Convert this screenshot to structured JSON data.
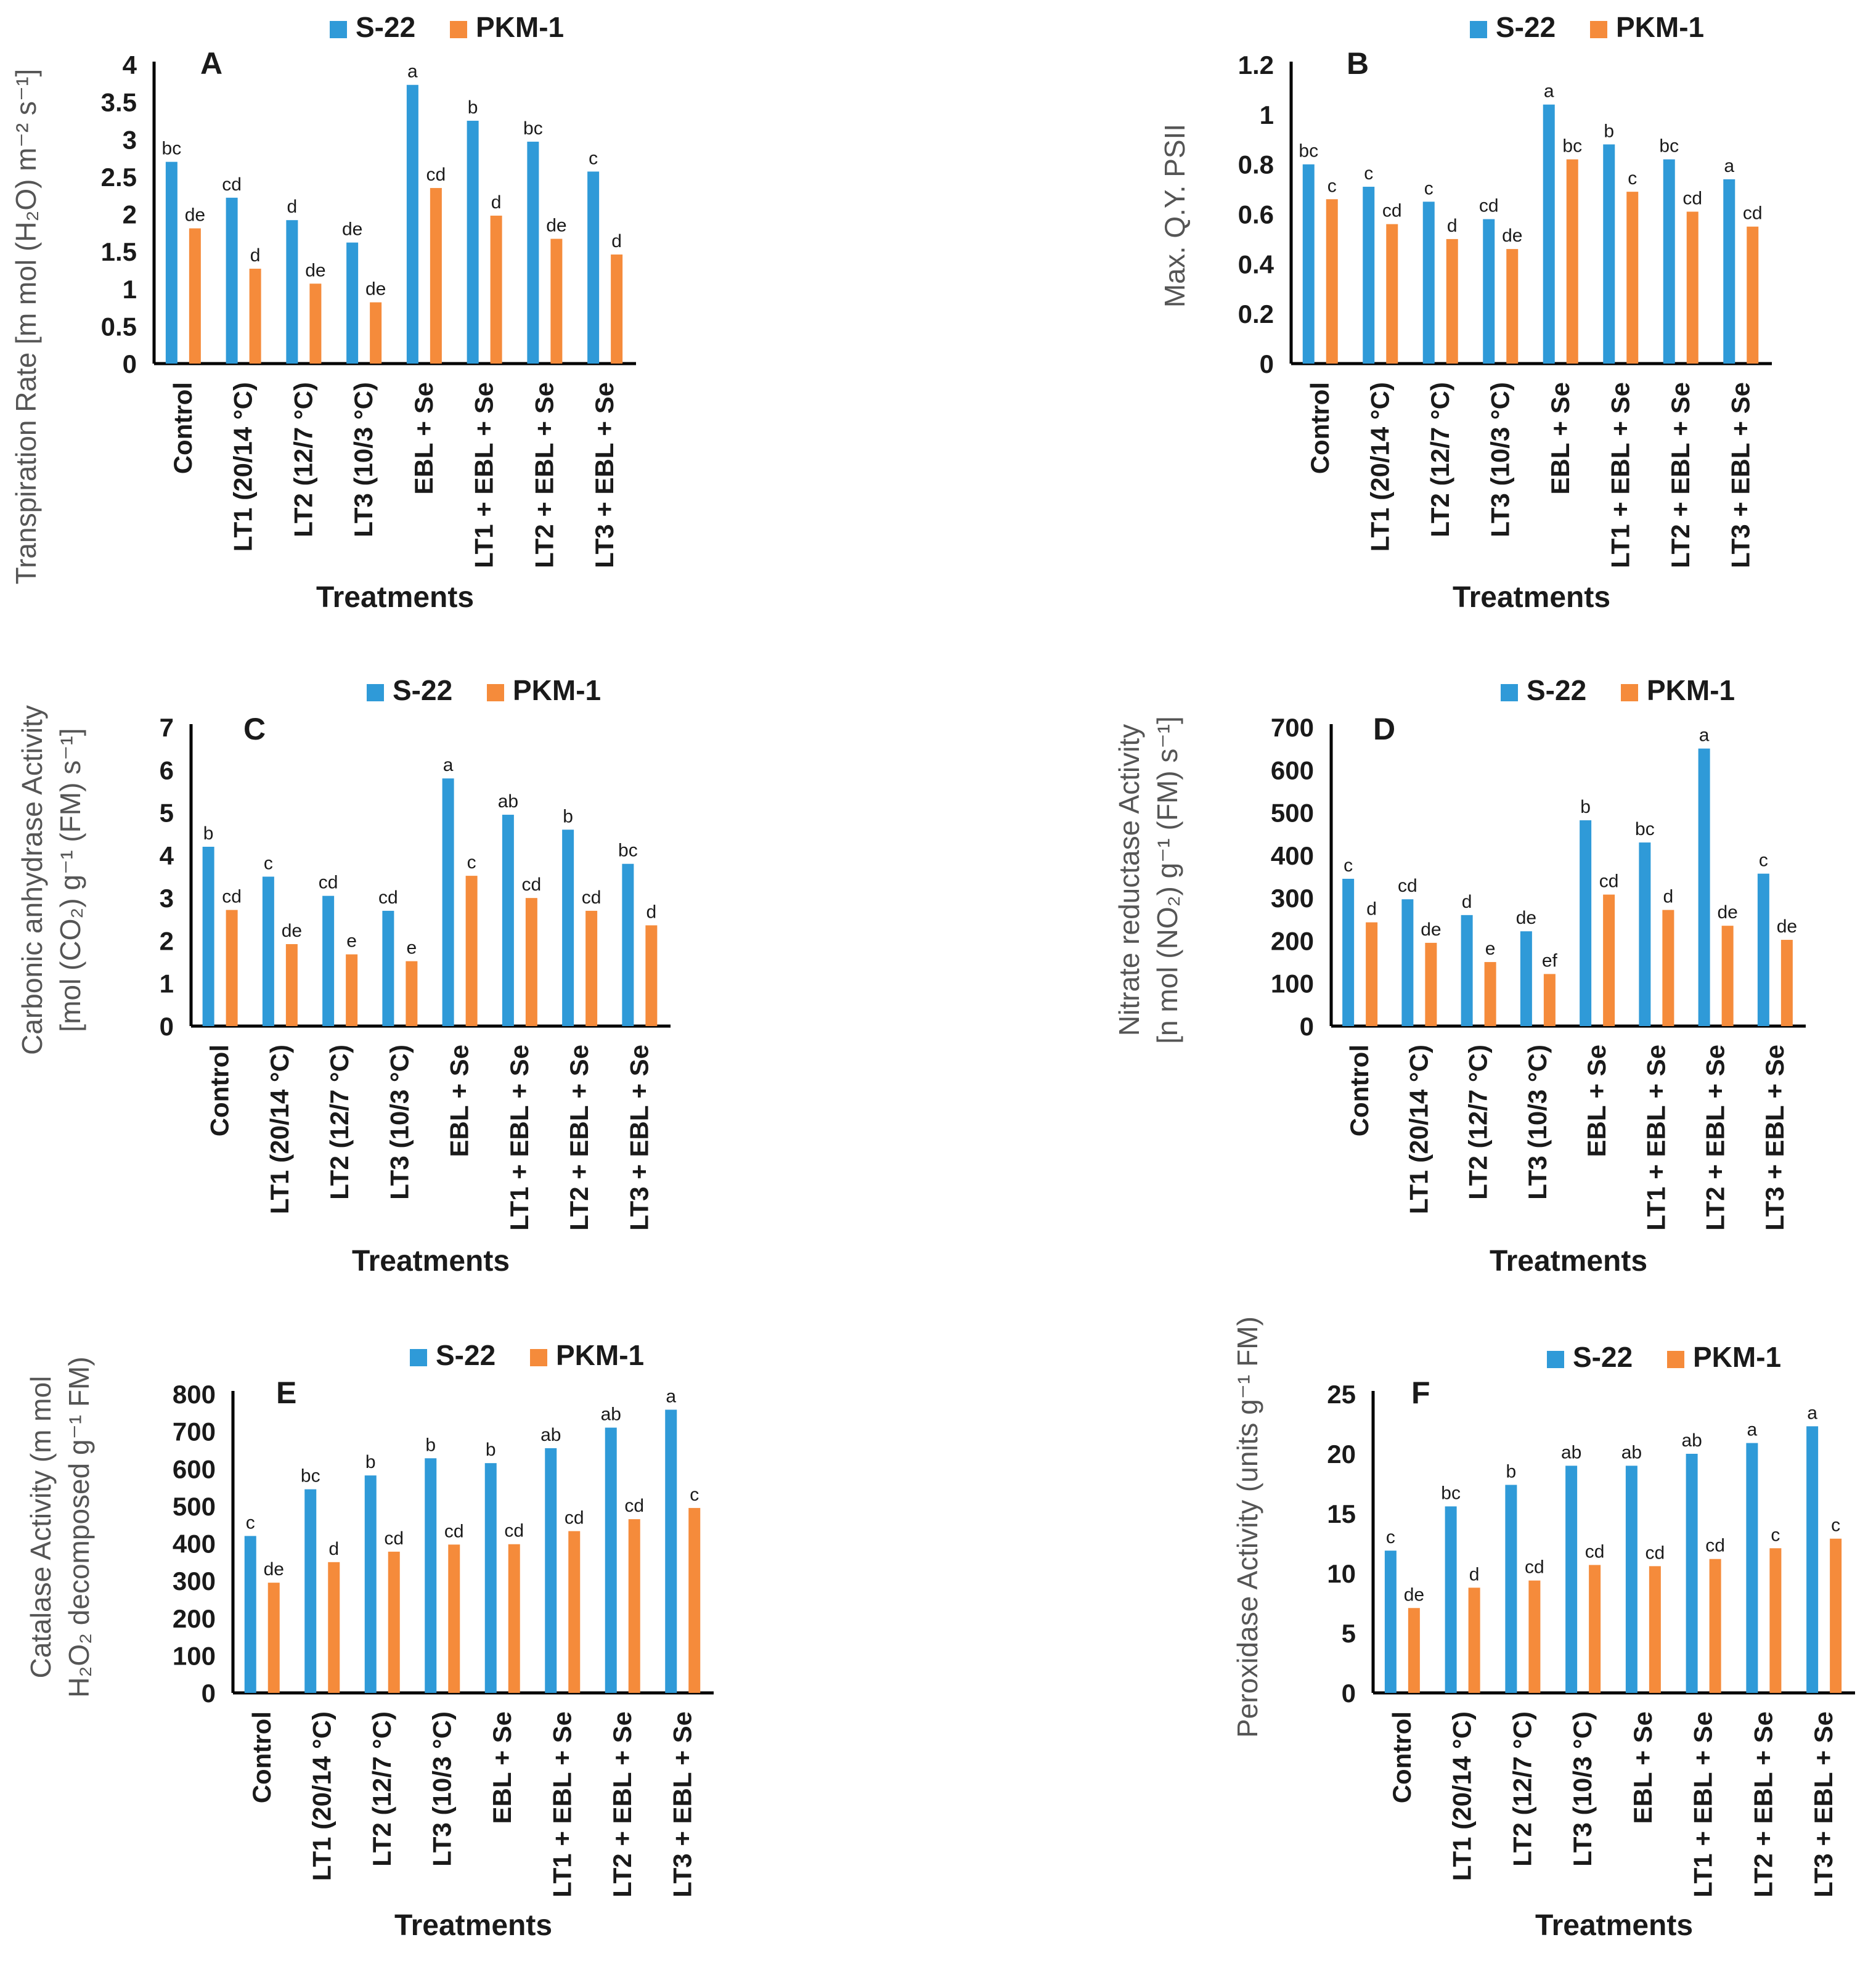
{
  "colors": {
    "s22": "#2f9ad8",
    "pkm1": "#f58b3b",
    "axis": "#000000",
    "text": "#1a1a1a",
    "ylabel": "#555555"
  },
  "categories": [
    "Control",
    "LT1 (20/14 °C)",
    "LT2 (12/7 °C)",
    "LT3 (10/3 °C)",
    "EBL + Se",
    "LT1 + EBL + Se",
    "LT2 + EBL + Se",
    "LT3 + EBL + Se"
  ],
  "chart_data": [
    {
      "type": "bar",
      "panel": "A",
      "xlabel": "Treatments",
      "ylabel": "Transpiration Rate [m mol (H₂O) m⁻² s⁻¹]",
      "ylim": [
        0,
        4
      ],
      "yticks": [
        "0",
        "0.5",
        "1",
        "1.5",
        "2",
        "2.5",
        "3",
        "3.5",
        "4"
      ],
      "legend": [
        "S-22",
        "PKM-1"
      ],
      "series": [
        {
          "name": "S-22",
          "values": [
            2.7,
            2.22,
            1.92,
            1.62,
            3.73,
            3.25,
            2.97,
            2.57
          ],
          "labels": [
            "bc",
            "cd",
            "d",
            "de",
            "a",
            "b",
            "bc",
            "c"
          ]
        },
        {
          "name": "PKM-1",
          "values": [
            1.81,
            1.27,
            1.07,
            0.82,
            2.35,
            1.98,
            1.67,
            1.46
          ],
          "labels": [
            "de",
            "d",
            "de",
            "de",
            "cd",
            "d",
            "de",
            "d"
          ]
        }
      ]
    },
    {
      "type": "bar",
      "panel": "B",
      "xlabel": "Treatments",
      "ylabel": "Max. Q.Y. PSII",
      "ylim": [
        0,
        1.2
      ],
      "yticks": [
        "0",
        "0.2",
        "0.4",
        "0.6",
        "0.8",
        "1",
        "1.2"
      ],
      "legend": [
        "S-22",
        "PKM-1"
      ],
      "series": [
        {
          "name": "S-22",
          "values": [
            0.8,
            0.71,
            0.65,
            0.58,
            1.04,
            0.88,
            0.82,
            0.74
          ],
          "labels": [
            "bc",
            "c",
            "c",
            "cd",
            "a",
            "b",
            "bc",
            "a"
          ]
        },
        {
          "name": "PKM-1",
          "values": [
            0.66,
            0.56,
            0.5,
            0.46,
            0.82,
            0.69,
            0.61,
            0.55
          ],
          "labels": [
            "c",
            "cd",
            "d",
            "de",
            "bc",
            "c",
            "cd",
            "cd"
          ]
        }
      ]
    },
    {
      "type": "bar",
      "panel": "C",
      "xlabel": "Treatments",
      "ylabel": "Carbonic anhydrase Activity [mol (CO₂) g⁻¹ (FM) s⁻¹]",
      "ylim": [
        0,
        7
      ],
      "yticks": [
        "0",
        "1",
        "2",
        "3",
        "4",
        "5",
        "6",
        "7"
      ],
      "legend": [
        "S-22",
        "PKM-1"
      ],
      "series": [
        {
          "name": "S-22",
          "values": [
            4.2,
            3.5,
            3.05,
            2.7,
            5.8,
            4.95,
            4.6,
            3.8
          ],
          "labels": [
            "b",
            "c",
            "cd",
            "cd",
            "a",
            "ab",
            "b",
            "bc"
          ]
        },
        {
          "name": "PKM-1",
          "values": [
            2.72,
            1.92,
            1.68,
            1.52,
            3.52,
            3.0,
            2.7,
            2.36
          ],
          "labels": [
            "cd",
            "de",
            "e",
            "e",
            "c",
            "cd",
            "cd",
            "d"
          ]
        }
      ]
    },
    {
      "type": "bar",
      "panel": "D",
      "xlabel": "Treatments",
      "ylabel": "Nitrate reductase Activity [n mol (NO₂) g⁻¹ (FM) s⁻¹]",
      "ylim": [
        0,
        700
      ],
      "yticks": [
        "0",
        "100",
        "200",
        "300",
        "400",
        "500",
        "600",
        "700"
      ],
      "legend": [
        "S-22",
        "PKM-1"
      ],
      "series": [
        {
          "name": "S-22",
          "values": [
            345,
            297,
            260,
            222,
            482,
            430,
            650,
            357
          ],
          "labels": [
            "c",
            "cd",
            "d",
            "de",
            "b",
            "bc",
            "a",
            "c"
          ]
        },
        {
          "name": "PKM-1",
          "values": [
            243,
            195,
            150,
            122,
            308,
            272,
            235,
            202
          ],
          "labels": [
            "d",
            "de",
            "e",
            "ef",
            "cd",
            "d",
            "de",
            "de"
          ]
        }
      ]
    },
    {
      "type": "bar",
      "panel": "E",
      "xlabel": "Treatments",
      "ylabel": "Catalase Activity (m mol H₂O₂ decomposed g⁻¹ FM)",
      "ylim": [
        0,
        800
      ],
      "yticks": [
        "0",
        "100",
        "200",
        "300",
        "400",
        "500",
        "600",
        "700",
        "800"
      ],
      "legend": [
        "S-22",
        "PKM-1"
      ],
      "series": [
        {
          "name": "S-22",
          "values": [
            420,
            545,
            582,
            628,
            615,
            655,
            710,
            758
          ],
          "labels": [
            "c",
            "bc",
            "b",
            "b",
            "b",
            "ab",
            "ab",
            "a"
          ]
        },
        {
          "name": "PKM-1",
          "values": [
            295,
            350,
            378,
            397,
            398,
            433,
            465,
            495
          ],
          "labels": [
            "de",
            "d",
            "cd",
            "cd",
            "cd",
            "cd",
            "cd",
            "c"
          ]
        }
      ]
    },
    {
      "type": "bar",
      "panel": "F",
      "xlabel": "Treatments",
      "ylabel": "Peroxidase Activity (units g⁻¹ FM)",
      "ylim": [
        0,
        25
      ],
      "yticks": [
        "0",
        "5",
        "10",
        "15",
        "20",
        "25"
      ],
      "legend": [
        "S-22",
        "PKM-1"
      ],
      "series": [
        {
          "name": "S-22",
          "values": [
            11.9,
            15.6,
            17.4,
            19.0,
            19.0,
            20.0,
            20.9,
            22.3
          ],
          "labels": [
            "c",
            "bc",
            "b",
            "ab",
            "ab",
            "ab",
            "a",
            "a"
          ]
        },
        {
          "name": "PKM-1",
          "values": [
            7.1,
            8.8,
            9.4,
            10.7,
            10.6,
            11.2,
            12.1,
            12.9
          ],
          "labels": [
            "de",
            "d",
            "cd",
            "cd",
            "cd",
            "cd",
            "c",
            "c"
          ]
        }
      ]
    }
  ]
}
